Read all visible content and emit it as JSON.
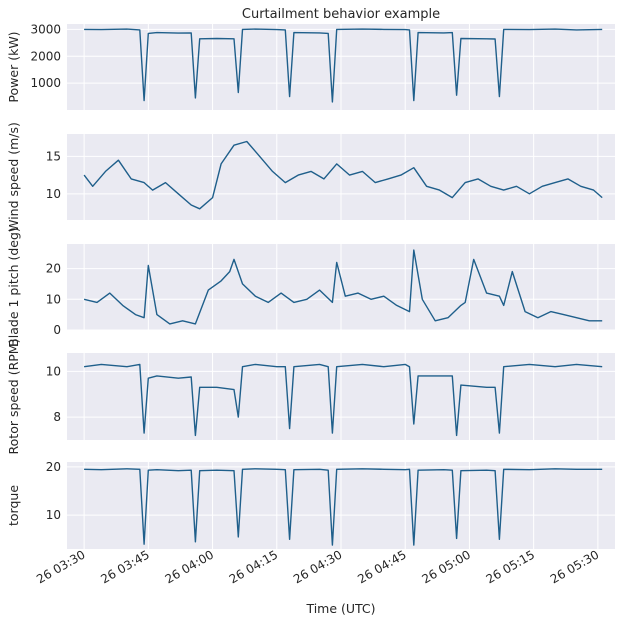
{
  "chart_data": {
    "type": "line",
    "title": "Curtailment behavior example",
    "xlabel": "Time (UTC)",
    "x_start": "26 03:30",
    "x_end": "26 05:30",
    "x_tick_labels": [
      "26 03:30",
      "26 03:45",
      "26 04:00",
      "26 04:15",
      "26 04:30",
      "26 04:45",
      "26 05:00",
      "26 05:15",
      "26 05:30"
    ],
    "grid": true,
    "panels": [
      {
        "ylabel": "Power (kW)",
        "ylim": [
          0,
          3200
        ],
        "yticks": [
          1000,
          2000,
          3000
        ],
        "series": {
          "x": [
            "03:30",
            "03:34",
            "03:40",
            "03:43",
            "03:44",
            "03:45",
            "03:47",
            "03:52",
            "03:55",
            "03:56",
            "03:57",
            "04:01",
            "04:05",
            "04:06",
            "04:07",
            "04:10",
            "04:15",
            "04:17",
            "04:18",
            "04:19",
            "04:25",
            "04:27",
            "04:28",
            "04:29",
            "04:35",
            "04:40",
            "04:45",
            "04:46",
            "04:47",
            "04:48",
            "04:54",
            "04:56",
            "04:57",
            "04:58",
            "05:04",
            "05:06",
            "05:07",
            "05:08",
            "05:14",
            "05:20",
            "05:25",
            "05:31"
          ],
          "values": [
            3000,
            2990,
            3010,
            2980,
            350,
            2850,
            2880,
            2860,
            2870,
            450,
            2650,
            2660,
            2650,
            650,
            3000,
            3010,
            2990,
            2980,
            500,
            2880,
            2870,
            2850,
            300,
            3000,
            3010,
            3000,
            2990,
            2980,
            350,
            2880,
            2870,
            2880,
            550,
            2660,
            2650,
            2640,
            500,
            3000,
            2990,
            3010,
            2980,
            3000
          ]
        }
      },
      {
        "ylabel": "Wind speed (m/s)",
        "ylim": [
          6.5,
          18
        ],
        "yticks": [
          10,
          15
        ],
        "series": {
          "x": [
            "03:30",
            "03:32",
            "03:35",
            "03:38",
            "03:41",
            "03:44",
            "03:46",
            "03:49",
            "03:52",
            "03:55",
            "03:57",
            "04:00",
            "04:02",
            "04:05",
            "04:08",
            "04:11",
            "04:14",
            "04:17",
            "04:20",
            "04:23",
            "04:26",
            "04:29",
            "04:32",
            "04:35",
            "04:38",
            "04:41",
            "04:44",
            "04:47",
            "04:50",
            "04:53",
            "04:56",
            "04:59",
            "05:02",
            "05:05",
            "05:08",
            "05:11",
            "05:14",
            "05:17",
            "05:20",
            "05:23",
            "05:26",
            "05:29",
            "05:31"
          ],
          "values": [
            12.5,
            11,
            13,
            14.5,
            12,
            11.5,
            10.5,
            11.5,
            10,
            8.5,
            8,
            9.5,
            14,
            16.5,
            17,
            15,
            13,
            11.5,
            12.5,
            13,
            12,
            14,
            12.5,
            13,
            11.5,
            12,
            12.5,
            13.5,
            11,
            10.5,
            9.5,
            11.5,
            12,
            11,
            10.5,
            11,
            10,
            11,
            11.5,
            12,
            11,
            10.5,
            9.5
          ]
        }
      },
      {
        "ylabel": "Blade 1 pitch (deg)",
        "ylim": [
          0,
          28
        ],
        "yticks": [
          0,
          10,
          20
        ],
        "series": {
          "x": [
            "03:30",
            "03:33",
            "03:36",
            "03:39",
            "03:42",
            "03:44",
            "03:45",
            "03:47",
            "03:50",
            "03:53",
            "03:56",
            "03:59",
            "04:02",
            "04:04",
            "04:05",
            "04:07",
            "04:10",
            "04:13",
            "04:16",
            "04:19",
            "04:22",
            "04:25",
            "04:28",
            "04:29",
            "04:31",
            "04:34",
            "04:37",
            "04:40",
            "04:43",
            "04:46",
            "04:47",
            "04:49",
            "04:52",
            "04:55",
            "04:58",
            "04:59",
            "05:01",
            "05:04",
            "05:07",
            "05:08",
            "05:10",
            "05:13",
            "05:16",
            "05:19",
            "05:22",
            "05:25",
            "05:28",
            "05:31"
          ],
          "values": [
            10,
            9,
            12,
            8,
            5,
            4,
            21,
            5,
            2,
            3,
            2,
            13,
            16,
            19,
            23,
            15,
            11,
            9,
            12,
            9,
            10,
            13,
            9,
            22,
            11,
            12,
            10,
            11,
            8,
            6,
            26,
            10,
            3,
            4,
            8,
            9,
            23,
            12,
            11,
            8,
            19,
            6,
            4,
            6,
            5,
            4,
            3,
            3
          ]
        }
      },
      {
        "ylabel": "Rotor speed (RPM)",
        "ylim": [
          7,
          10.8
        ],
        "yticks": [
          8,
          10
        ],
        "series": {
          "x": [
            "03:30",
            "03:34",
            "03:40",
            "03:43",
            "03:44",
            "03:45",
            "03:47",
            "03:52",
            "03:55",
            "03:56",
            "03:57",
            "04:01",
            "04:05",
            "04:06",
            "04:07",
            "04:10",
            "04:15",
            "04:17",
            "04:18",
            "04:19",
            "04:25",
            "04:27",
            "04:28",
            "04:29",
            "04:35",
            "04:40",
            "04:45",
            "04:46",
            "04:47",
            "04:48",
            "04:54",
            "04:56",
            "04:57",
            "04:58",
            "05:04",
            "05:06",
            "05:07",
            "05:08",
            "05:14",
            "05:20",
            "05:25",
            "05:31"
          ],
          "values": [
            10.2,
            10.3,
            10.2,
            10.3,
            7.3,
            9.7,
            9.8,
            9.7,
            9.75,
            7.2,
            9.3,
            9.3,
            9.2,
            8.0,
            10.2,
            10.3,
            10.2,
            10.2,
            7.5,
            10.2,
            10.3,
            10.2,
            7.3,
            10.2,
            10.3,
            10.2,
            10.3,
            10.2,
            7.7,
            9.8,
            9.8,
            9.8,
            7.2,
            9.4,
            9.3,
            9.3,
            7.3,
            10.2,
            10.3,
            10.2,
            10.3,
            10.2
          ]
        }
      },
      {
        "ylabel": "torque",
        "ylim": [
          3,
          21
        ],
        "yticks": [
          10,
          20
        ],
        "series": {
          "x": [
            "03:30",
            "03:34",
            "03:40",
            "03:43",
            "03:44",
            "03:45",
            "03:47",
            "03:52",
            "03:55",
            "03:56",
            "03:57",
            "04:01",
            "04:05",
            "04:06",
            "04:07",
            "04:10",
            "04:15",
            "04:17",
            "04:18",
            "04:19",
            "04:25",
            "04:27",
            "04:28",
            "04:29",
            "04:35",
            "04:40",
            "04:45",
            "04:46",
            "04:47",
            "04:48",
            "04:54",
            "04:56",
            "04:57",
            "04:58",
            "05:04",
            "05:06",
            "05:07",
            "05:08",
            "05:14",
            "05:20",
            "05:25",
            "05:31"
          ],
          "values": [
            19.5,
            19.4,
            19.6,
            19.5,
            4,
            19.3,
            19.4,
            19.2,
            19.3,
            4.5,
            19.2,
            19.3,
            19.2,
            5.5,
            19.5,
            19.6,
            19.5,
            19.4,
            5,
            19.4,
            19.5,
            19.3,
            3.8,
            19.5,
            19.6,
            19.5,
            19.4,
            19.5,
            3.8,
            19.3,
            19.4,
            19.3,
            5.2,
            19.2,
            19.3,
            19.2,
            5,
            19.5,
            19.4,
            19.6,
            19.5,
            19.5
          ]
        }
      }
    ]
  }
}
